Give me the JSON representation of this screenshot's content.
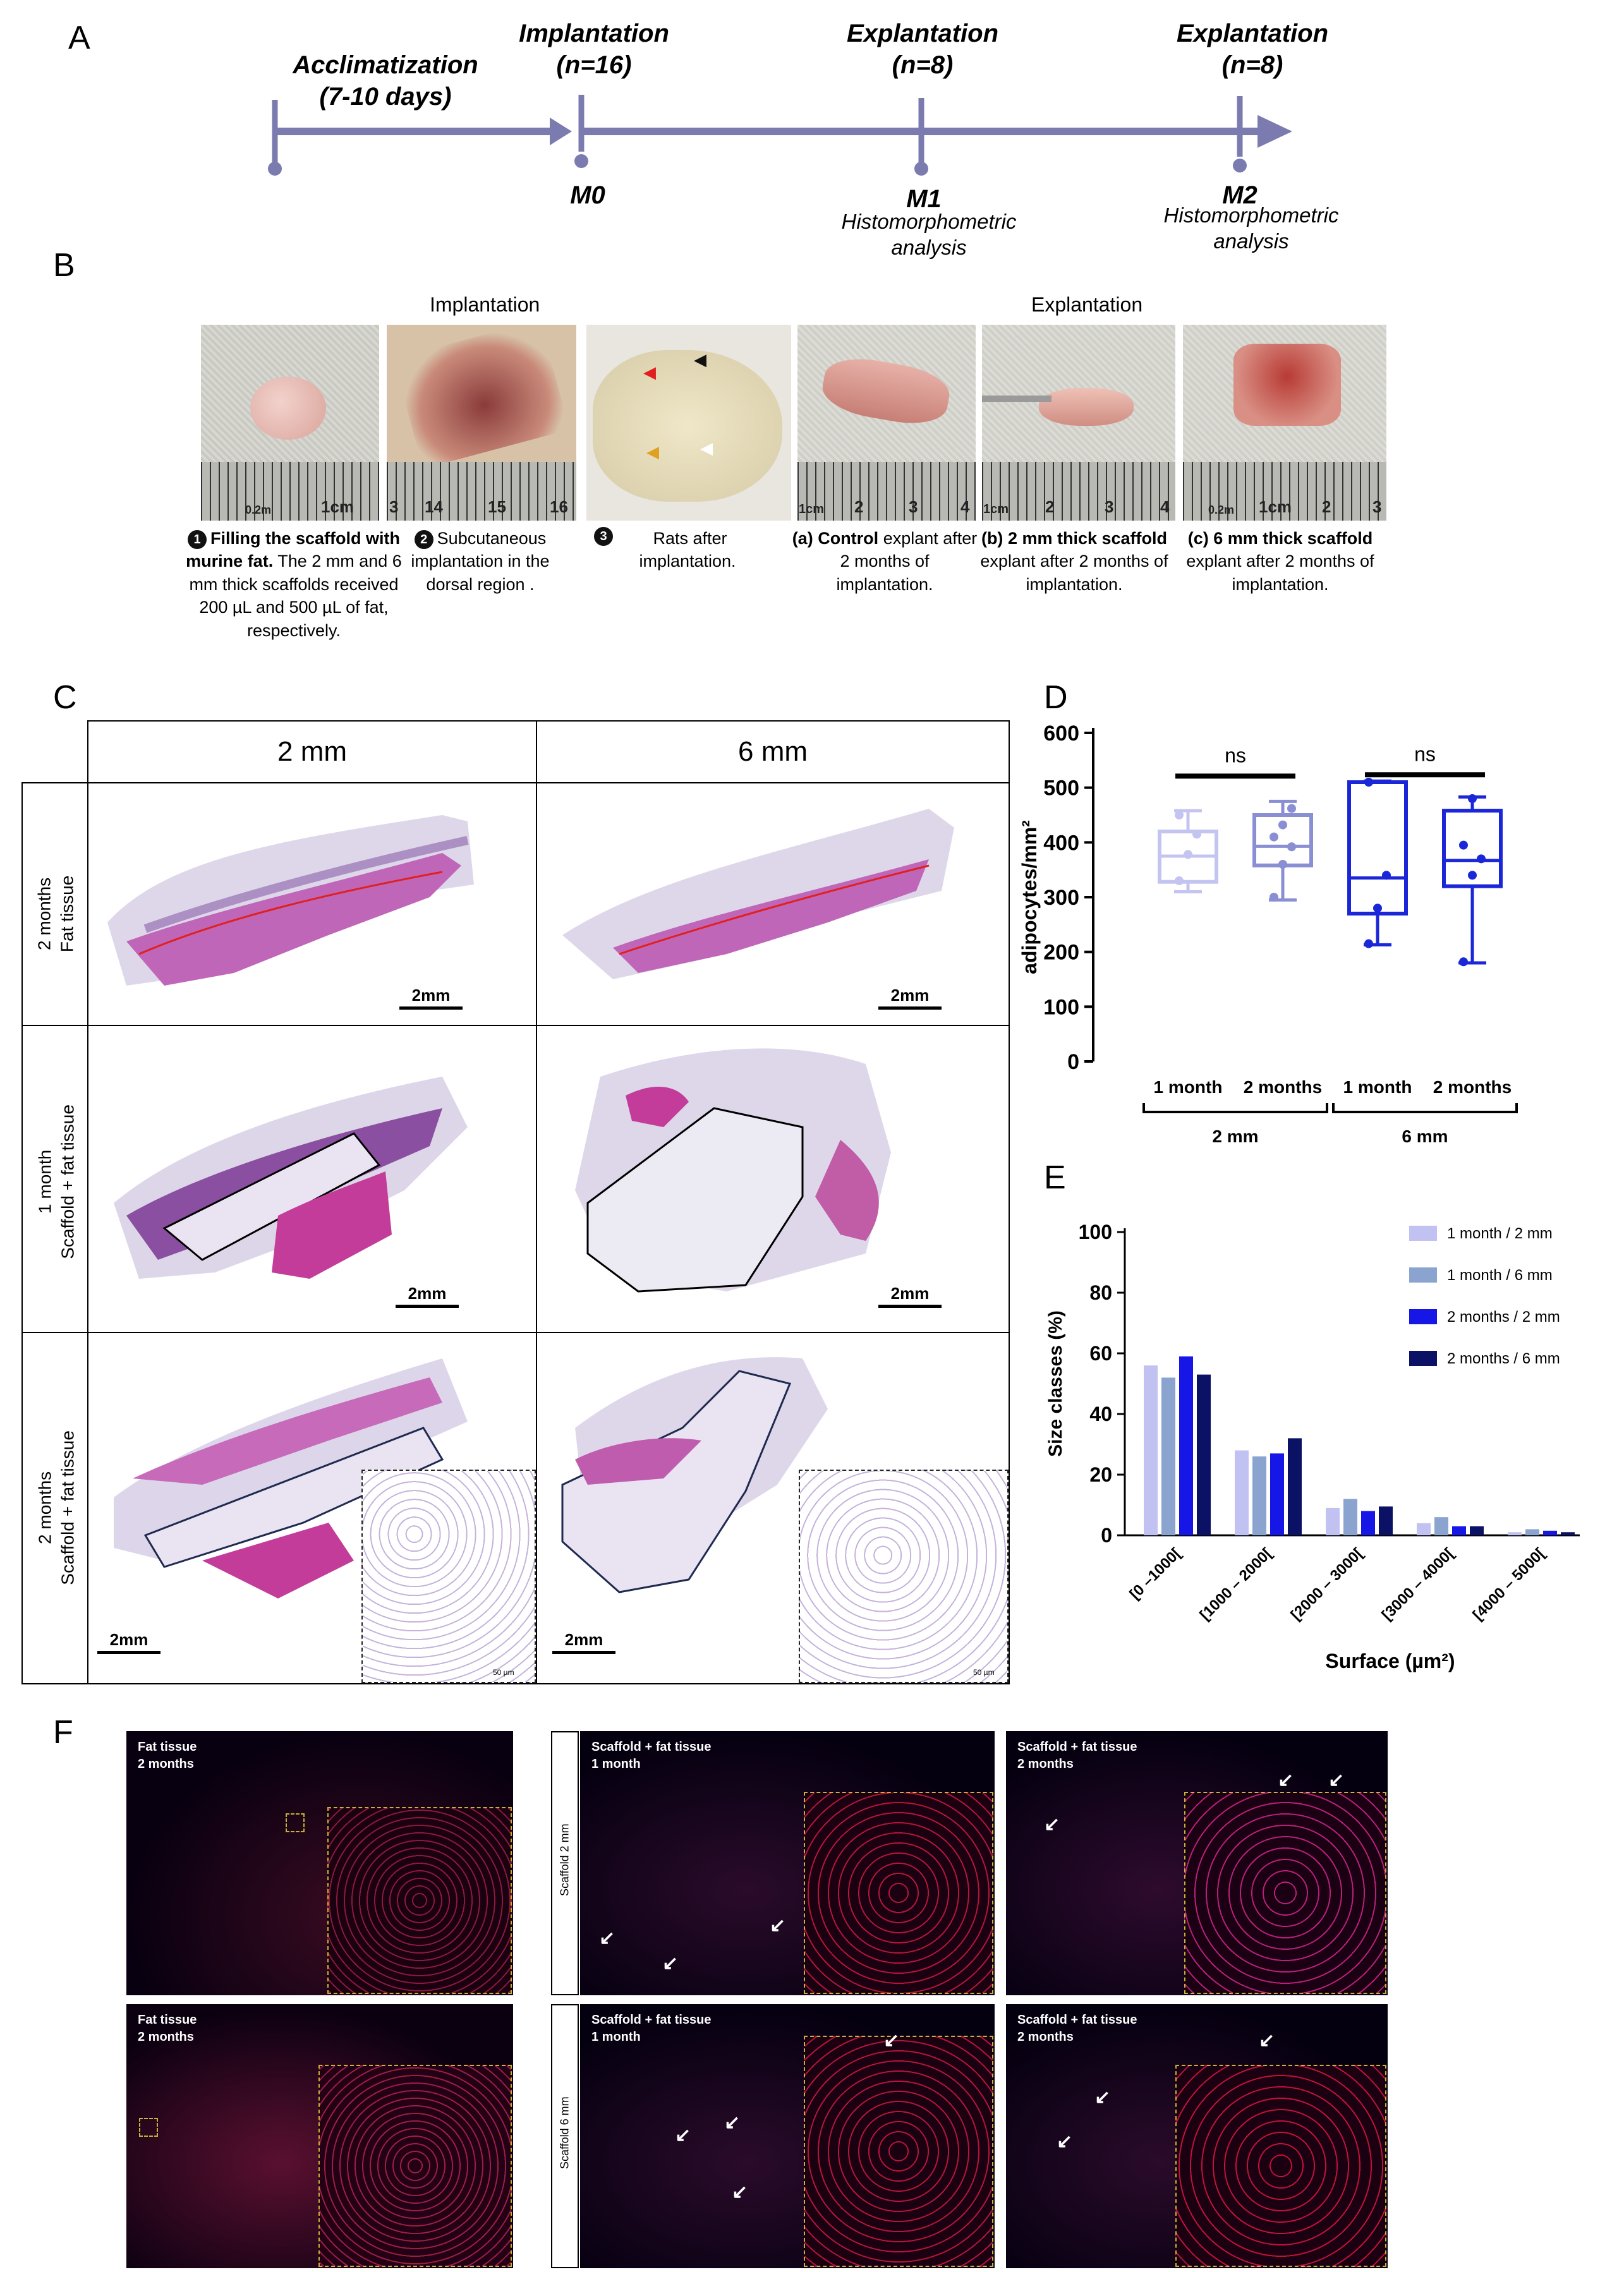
{
  "panels": {
    "a": "A",
    "b": "B",
    "c": "C",
    "d": "D",
    "e": "E",
    "f": "F"
  },
  "timeline": {
    "acclimatization": "Acclimatization",
    "acclimatization_days": "(7-10 days)",
    "implantation": "Implantation",
    "implantation_n": "(n=16)",
    "explantation1": "Explantation",
    "explantation1_n": "(n=8)",
    "explantation2": "Explantation",
    "explantation2_n": "(n=8)",
    "m0": "M0",
    "m1": "M1",
    "m2": "M2",
    "m1_sub1": "Histomorphometric",
    "m1_sub2": "analysis",
    "m2_sub1": "Histomorphometric",
    "m2_sub2": "analysis",
    "color": "#7b7bb0"
  },
  "section_b": {
    "implantation_header": "Implantation",
    "explantation_header": "Explantation",
    "ruler_labels": {
      "p1": [
        "0.2m",
        "1cm"
      ],
      "p2": [
        "3",
        "14",
        "15",
        "16"
      ],
      "p4": [
        "1cm",
        "2",
        "3",
        "4"
      ],
      "p5": [
        "1cm",
        "2",
        "3",
        "4"
      ],
      "p6": [
        "0.2m",
        "1cm",
        "2",
        "3"
      ]
    },
    "captions": {
      "c1_num": "1",
      "c1_bold": "Filling the scaffold with murine fat.",
      "c1_rest": "The 2 mm and 6 mm thick scaffolds received 200 µL and 500 µL of fat, respectively.",
      "c2_num": "2",
      "c2_text": "Subcutaneous implantation in the dorsal region .",
      "c3_num": "3",
      "c3_text": "Rats after implantation.",
      "c4_pre": "(a)",
      "c4_bold": "Control",
      "c4_rest": "explant after 2 months of implantation.",
      "c5_pre": "(b)",
      "c5_bold": "2 mm thick scaffold",
      "c5_rest": "explant after 2 months of implantation.",
      "c6_pre": "(c)",
      "c6_bold": "6 mm thick scaffold",
      "c6_rest": "explant after 2 months of implantation."
    }
  },
  "section_c": {
    "col1": "2 mm",
    "col2": "6 mm",
    "row1": [
      "2 months",
      "Fat tissue"
    ],
    "row2": [
      "1 month",
      "Scaffold + fat tissue"
    ],
    "row3": [
      "2 months",
      "Scaffold + fat tissue"
    ],
    "scale": "2mm",
    "inset_scale": "50 µm"
  },
  "section_f": {
    "t1": [
      "Fat tissue",
      "2 months"
    ],
    "t2": [
      "Scaffold + fat tissue",
      "1 month"
    ],
    "t3": [
      "Scaffold + fat tissue",
      "2 months"
    ],
    "t4": [
      "Fat tissue",
      "2 months"
    ],
    "t5": [
      "Scaffold + fat tissue",
      "1 month"
    ],
    "t6": [
      "Scaffold + fat tissue",
      "2 months"
    ],
    "side1": "Scaffold 2 mm",
    "side2": "Scaffold 6 mm"
  },
  "chart_data": [
    {
      "type": "box",
      "ylabel": "adipocytes/mm²",
      "ylim": [
        0,
        600
      ],
      "yticks": [
        0,
        100,
        200,
        300,
        400,
        500,
        600
      ],
      "categories": [
        "1 month",
        "2 months",
        "1 month",
        "2 months"
      ],
      "groups": [
        {
          "label": "2 mm",
          "categories": [
            0,
            1
          ]
        },
        {
          "label": "6 mm",
          "categories": [
            2,
            3
          ]
        }
      ],
      "significance": [
        {
          "between": [
            0,
            1
          ],
          "label": "ns"
        },
        {
          "between": [
            2,
            3
          ],
          "label": "ns"
        }
      ],
      "boxes": [
        {
          "min": 310,
          "q1": 328,
          "median": 375,
          "q3": 420,
          "max": 458,
          "color": "#c4c4f0",
          "points": [
            330,
            378,
            415,
            450
          ]
        },
        {
          "min": 295,
          "q1": 358,
          "median": 393,
          "q3": 450,
          "max": 475,
          "color": "#8a8ed2",
          "points": [
            300,
            360,
            392,
            410,
            432,
            462
          ]
        },
        {
          "min": 213,
          "q1": 270,
          "median": 335,
          "q3": 510,
          "max": 512,
          "color": "#1b26d8",
          "points": [
            215,
            280,
            340,
            510
          ]
        },
        {
          "min": 180,
          "q1": 320,
          "median": 367,
          "q3": 458,
          "max": 483,
          "color": "#1b26d8",
          "points": [
            182,
            340,
            370,
            395,
            480
          ]
        }
      ]
    },
    {
      "type": "bar",
      "xlabel": "Surface (µm²)",
      "ylabel": "Size classes (%)",
      "ylim": [
        0,
        100
      ],
      "yticks": [
        0,
        20,
        40,
        60,
        80,
        100
      ],
      "categories": [
        "[0 –1000[",
        "[1000 – 2000[",
        "[2000 – 3000[",
        "[3000 – 4000[",
        "[4000 – 5000["
      ],
      "series": [
        {
          "name": "1 month / 2 mm",
          "color": "#c2c2f2",
          "values": [
            56,
            28,
            9,
            4,
            1
          ]
        },
        {
          "name": "1 month / 6 mm",
          "color": "#8aa4cf",
          "values": [
            52,
            26,
            12,
            6,
            2
          ]
        },
        {
          "name": "2 months / 2 mm",
          "color": "#1616e6",
          "values": [
            59,
            27,
            8,
            3,
            1.5
          ]
        },
        {
          "name": "2 months / 6 mm",
          "color": "#0b1266",
          "values": [
            53,
            32,
            9.5,
            3,
            1
          ]
        }
      ],
      "legend": "top-right"
    }
  ]
}
